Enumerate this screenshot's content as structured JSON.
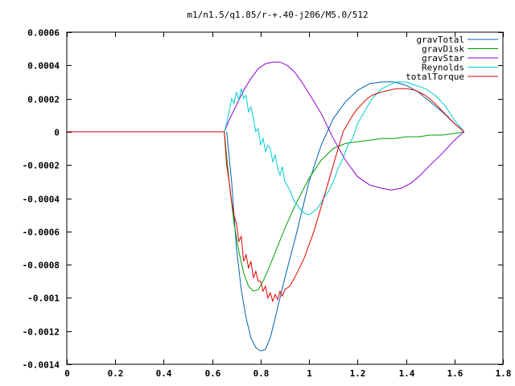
{
  "chart_data": {
    "type": "line",
    "title": "m1/n1.5/q1.85/r-+.40-j206/M5.0/512",
    "xlabel": "",
    "ylabel": "",
    "xlim": [
      0,
      1.8
    ],
    "ylim": [
      -0.0014,
      0.0006
    ],
    "grid": false,
    "legend_position": "top-right",
    "x_ticks": [
      0,
      0.2,
      0.4,
      0.6,
      0.8,
      1,
      1.2,
      1.4,
      1.6,
      1.8
    ],
    "x_tick_labels": [
      "0",
      "0.2",
      "0.4",
      "0.6",
      "0.8",
      "1",
      "1.2",
      "1.4",
      "1.6",
      "1.8"
    ],
    "y_ticks": [
      0.0006,
      0.0004,
      0.0002,
      0,
      -0.0002,
      -0.0004,
      -0.0006,
      -0.0008,
      -0.001,
      -0.0012,
      -0.0014
    ],
    "y_tick_labels": [
      "0.0006",
      "0.0004",
      "0.0002",
      "0",
      "-0.0002",
      "-0.0004",
      "-0.0006",
      "-0.0008",
      "-0.001",
      "-0.0012",
      "-0.0014"
    ],
    "series": [
      {
        "name": "gravTotal",
        "color": "#0060ad",
        "x": [
          0.66,
          0.68,
          0.7,
          0.72,
          0.74,
          0.76,
          0.78,
          0.8,
          0.82,
          0.84,
          0.86,
          0.9,
          0.95,
          1.0,
          1.05,
          1.1,
          1.15,
          1.2,
          1.25,
          1.3,
          1.35,
          1.4,
          1.45,
          1.5,
          1.55,
          1.6,
          1.64
        ],
        "y": [
          0,
          -0.0003,
          -0.0007,
          -0.00095,
          -0.00112,
          -0.00124,
          -0.0013,
          -0.00132,
          -0.00131,
          -0.00124,
          -0.00112,
          -0.00088,
          -0.0006,
          -0.0003,
          -8e-05,
          8e-05,
          0.00018,
          0.00025,
          0.00029,
          0.0003,
          0.0003,
          0.00028,
          0.00024,
          0.00018,
          0.00012,
          5e-05,
          0
        ]
      },
      {
        "name": "gravDisk",
        "color": "#009e00",
        "x": [
          0.65,
          0.67,
          0.69,
          0.71,
          0.73,
          0.75,
          0.77,
          0.79,
          0.81,
          0.84,
          0.87,
          0.9,
          0.95,
          1.0,
          1.05,
          1.1,
          1.15,
          1.2,
          1.25,
          1.3,
          1.35,
          1.4,
          1.45,
          1.5,
          1.55,
          1.6,
          1.64
        ],
        "y": [
          0,
          -0.0003,
          -0.00055,
          -0.00072,
          -0.00085,
          -0.00093,
          -0.00096,
          -0.00095,
          -0.0009,
          -0.0008,
          -0.00069,
          -0.00058,
          -0.00042,
          -0.00028,
          -0.00017,
          -0.0001,
          -7e-05,
          -6e-05,
          -5e-05,
          -4e-05,
          -4e-05,
          -3e-05,
          -3e-05,
          -2e-05,
          -2e-05,
          -1e-05,
          0
        ]
      },
      {
        "name": "gravStar",
        "color": "#9400d3",
        "x": [
          0.65,
          0.67,
          0.7,
          0.73,
          0.76,
          0.79,
          0.82,
          0.85,
          0.88,
          0.91,
          0.94,
          0.97,
          1.0,
          1.05,
          1.1,
          1.15,
          1.2,
          1.25,
          1.3,
          1.34,
          1.38,
          1.42,
          1.46,
          1.5,
          1.55,
          1.6,
          1.64
        ],
        "y": [
          0,
          7e-05,
          0.00016,
          0.00025,
          0.00032,
          0.00038,
          0.00041,
          0.00042,
          0.00042,
          0.0004,
          0.00036,
          0.0003,
          0.00023,
          0.00011,
          -4e-05,
          -0.00017,
          -0.00027,
          -0.00032,
          -0.00034,
          -0.00035,
          -0.00034,
          -0.00031,
          -0.00026,
          -0.0002,
          -0.00013,
          -5e-05,
          0
        ]
      },
      {
        "name": "Reynolds",
        "color": "#00d0d0",
        "x": [
          0.65,
          0.66,
          0.67,
          0.68,
          0.69,
          0.7,
          0.71,
          0.72,
          0.73,
          0.74,
          0.75,
          0.76,
          0.77,
          0.78,
          0.79,
          0.8,
          0.81,
          0.82,
          0.83,
          0.84,
          0.85,
          0.86,
          0.87,
          0.88,
          0.89,
          0.9,
          0.92,
          0.94,
          0.96,
          0.98,
          1.0,
          1.02,
          1.04,
          1.06,
          1.08,
          1.1,
          1.12,
          1.14,
          1.16,
          1.18,
          1.2,
          1.22,
          1.24,
          1.26,
          1.28,
          1.3,
          1.33,
          1.36,
          1.4,
          1.44,
          1.48,
          1.52,
          1.56,
          1.6,
          1.64
        ],
        "y": [
          0,
          5e-05,
          0.00012,
          0.0002,
          0.00017,
          0.00024,
          0.00019,
          0.00026,
          0.0002,
          0.00022,
          0.00012,
          0.00015,
          8e-05,
          0.0,
          2e-05,
          -8e-05,
          -4e-05,
          -0.00012,
          -8e-05,
          -0.0001,
          -0.00018,
          -0.00014,
          -0.00022,
          -0.00026,
          -0.00021,
          -0.0003,
          -0.00035,
          -0.00042,
          -0.00046,
          -0.00049,
          -0.0005,
          -0.00048,
          -0.00045,
          -0.0004,
          -0.00036,
          -0.0003,
          -0.00022,
          -0.00016,
          -8e-05,
          -4e-05,
          5e-05,
          0.0001,
          0.00015,
          0.0002,
          0.00023,
          0.00026,
          0.00028,
          0.0003,
          0.0003,
          0.00028,
          0.00026,
          0.00022,
          0.00016,
          7e-05,
          0
        ]
      },
      {
        "name": "totalTorque",
        "color": "#e00000",
        "x": [
          0,
          0.65,
          0.66,
          0.67,
          0.68,
          0.69,
          0.7,
          0.71,
          0.72,
          0.73,
          0.74,
          0.75,
          0.76,
          0.77,
          0.78,
          0.79,
          0.8,
          0.81,
          0.82,
          0.83,
          0.84,
          0.85,
          0.86,
          0.87,
          0.88,
          0.89,
          0.9,
          0.92,
          0.94,
          0.96,
          0.98,
          1.0,
          1.02,
          1.04,
          1.06,
          1.08,
          1.1,
          1.12,
          1.14,
          1.16,
          1.18,
          1.2,
          1.22,
          1.24,
          1.26,
          1.28,
          1.3,
          1.33,
          1.36,
          1.4,
          1.44,
          1.48,
          1.52,
          1.56,
          1.6,
          1.64
        ],
        "y": [
          0,
          0,
          -0.0002,
          -0.0003,
          -0.00042,
          -0.0005,
          -0.00055,
          -0.00066,
          -0.00063,
          -0.00078,
          -0.00074,
          -0.00082,
          -0.00078,
          -0.00088,
          -0.00084,
          -0.0009,
          -0.0009,
          -0.00096,
          -0.00093,
          -0.001,
          -0.00097,
          -0.00102,
          -0.00098,
          -0.00101,
          -0.00096,
          -0.00099,
          -0.00095,
          -0.00093,
          -0.00088,
          -0.00082,
          -0.00076,
          -0.00068,
          -0.0006,
          -0.0005,
          -0.0004,
          -0.0003,
          -0.0002,
          -0.0001,
          0.0,
          5e-05,
          0.0001,
          0.00014,
          0.00017,
          0.0002,
          0.00022,
          0.00023,
          0.00024,
          0.00025,
          0.00026,
          0.00026,
          0.00025,
          0.00022,
          0.00017,
          0.00011,
          5e-05,
          0
        ]
      }
    ]
  }
}
